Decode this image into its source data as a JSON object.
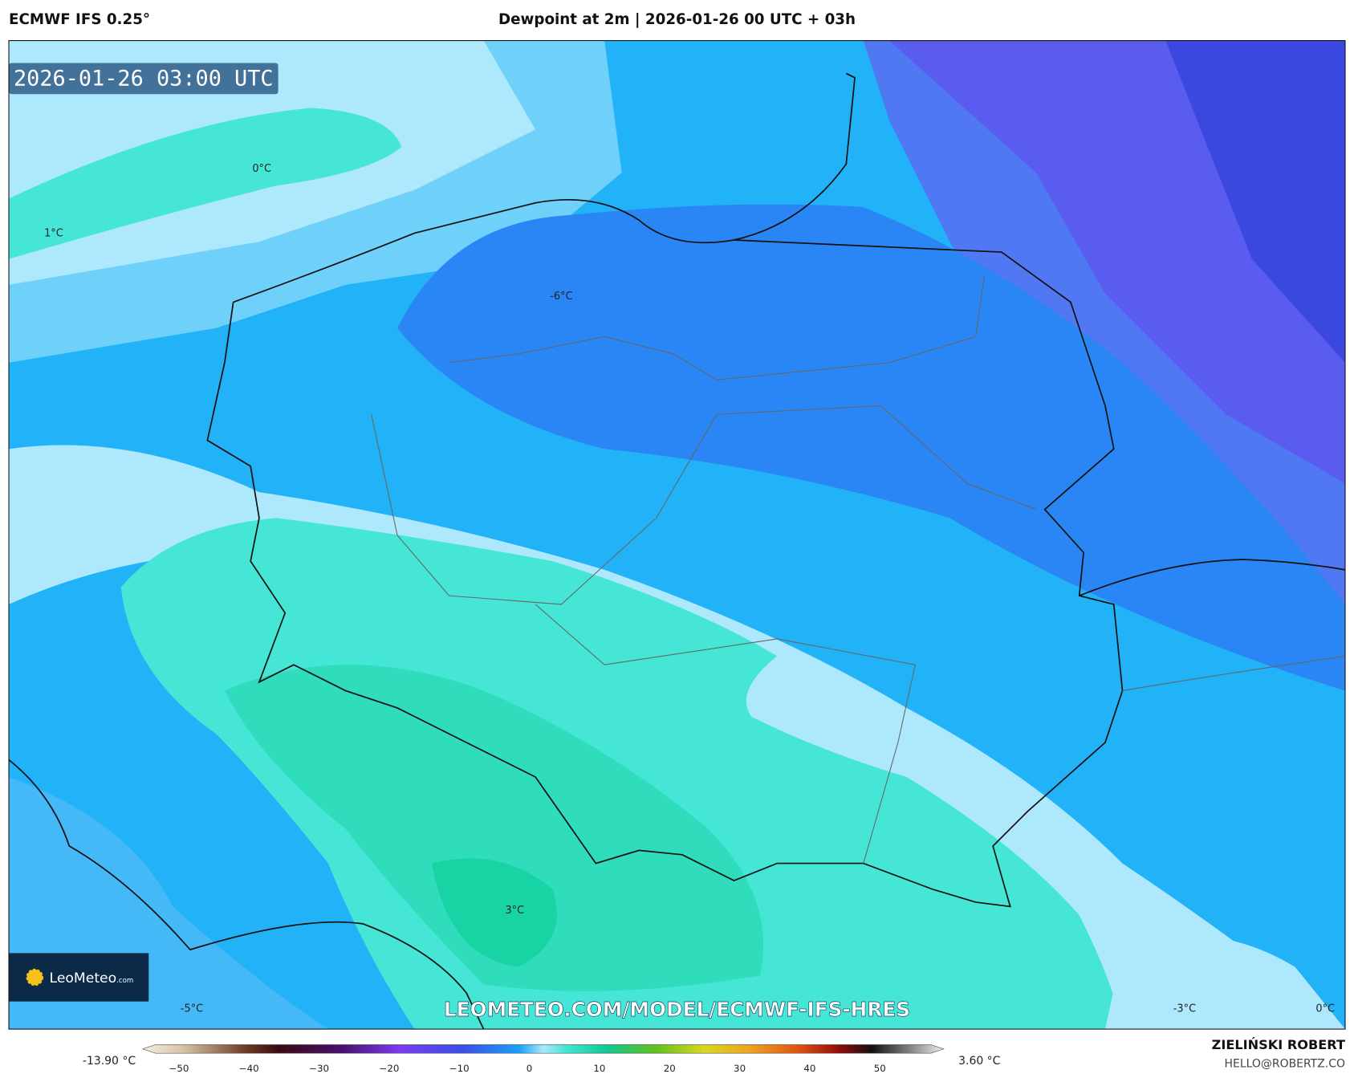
{
  "header": {
    "model": "ECMWF IFS 0.25°",
    "title": "Dewpoint at 2m | 2026-01-26 00 UTC + 03h"
  },
  "map": {
    "valid_time": "2026-01-26 03:00 UTC",
    "contour_labels": [
      "0°C",
      "1°C",
      "-6°C",
      "3°C",
      "-5°C",
      "-3°C",
      "0°C"
    ],
    "watermark": "LEOMETEO.COM/MODEL/ECMWF-IFS-HRES",
    "logo": {
      "name": "LeoMeteo",
      "domain": ".com"
    }
  },
  "colorbar": {
    "min_label": "-13.90 °C",
    "max_label": "3.60 °C",
    "ticks": [
      "−50",
      "−40",
      "−30",
      "−20",
      "−10",
      "0",
      "10",
      "20",
      "30",
      "40",
      "50"
    ]
  },
  "footer": {
    "author": "ZIELIŃSKI ROBERT",
    "email": "HELLO@ROBERTZ.CO"
  }
}
